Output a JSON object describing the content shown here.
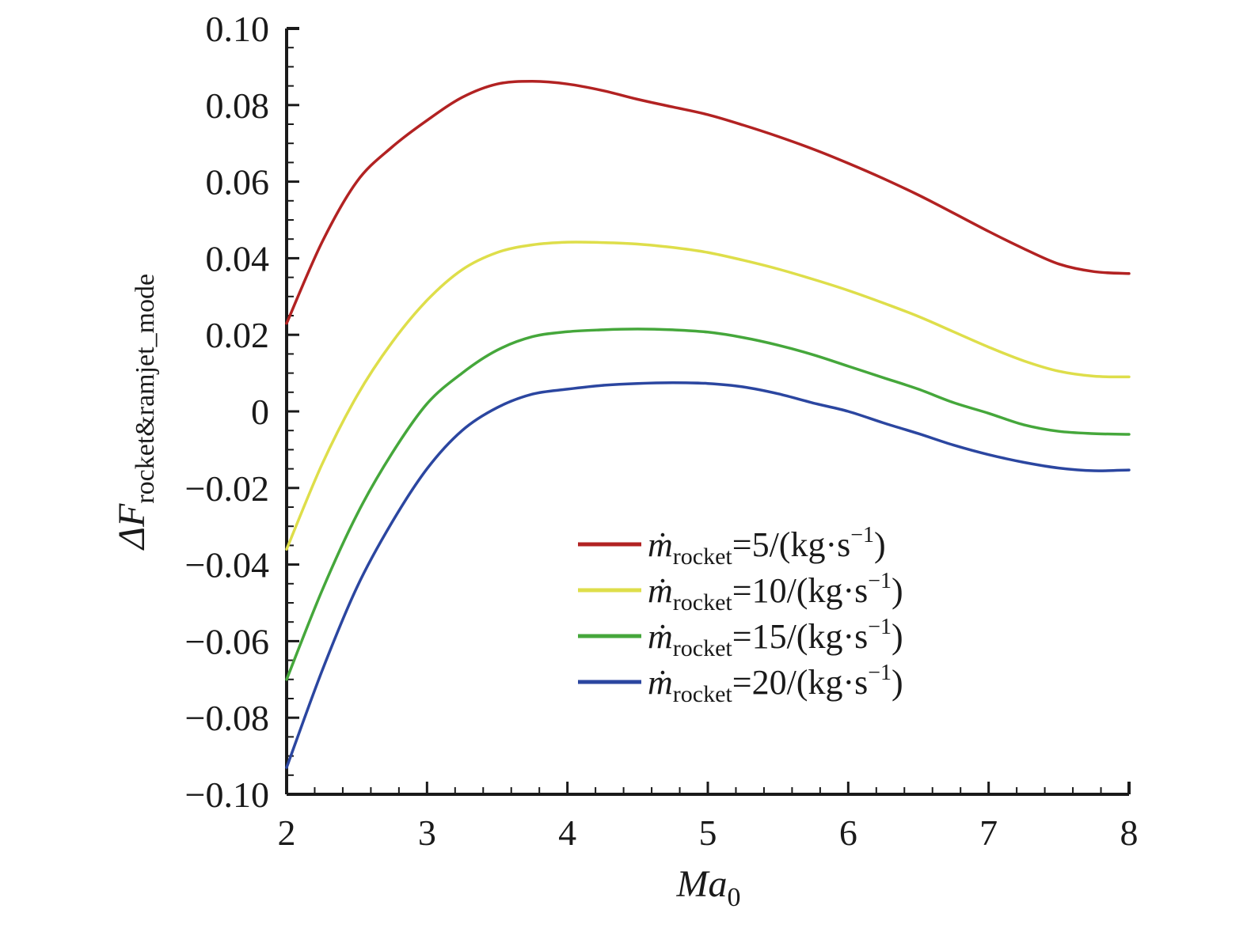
{
  "chart_data": {
    "type": "line",
    "title": "",
    "xlabel": "Ma",
    "xlabel_sub": "0",
    "ylabel": "ΔF",
    "ylabel_sub": "rocket&ramjet_mode",
    "xlim": [
      2,
      8
    ],
    "ylim": [
      -0.1,
      0.1
    ],
    "x_ticks": [
      2,
      3,
      4,
      5,
      6,
      7,
      8
    ],
    "x_tick_labels": [
      "2",
      "3",
      "4",
      "5",
      "6",
      "7",
      "8"
    ],
    "y_ticks": [
      0.1,
      0.08,
      0.06,
      0.04,
      0.02,
      0,
      -0.02,
      -0.04,
      -0.06,
      -0.08,
      -0.1
    ],
    "y_tick_labels": [
      "0.10",
      "0.08",
      "0.06",
      "0.04",
      "0.02",
      "0",
      "−0.02",
      "−0.04",
      "−0.06",
      "−0.08",
      "−0.10"
    ],
    "grid": false,
    "legend_position": "bottom-right",
    "x": [
      2.0,
      2.25,
      2.5,
      2.75,
      3.0,
      3.25,
      3.5,
      3.75,
      4.0,
      4.25,
      4.5,
      4.75,
      5.0,
      5.25,
      5.5,
      5.75,
      6.0,
      6.25,
      6.5,
      6.75,
      7.0,
      7.25,
      7.5,
      7.75,
      8.0
    ],
    "series": [
      {
        "name": "ṁ",
        "name_sub": "rocket",
        "name_rest": "=5/(kg·s",
        "name_sup": "−1",
        "name_end": ")",
        "color": "#b22222",
        "values": [
          0.023,
          0.044,
          0.06,
          0.069,
          0.076,
          0.082,
          0.0855,
          0.0862,
          0.0855,
          0.0838,
          0.0815,
          0.0795,
          0.0775,
          0.0748,
          0.0718,
          0.0685,
          0.0648,
          0.0608,
          0.0565,
          0.0518,
          0.047,
          0.0425,
          0.0385,
          0.0365,
          0.036
        ]
      },
      {
        "name": "ṁ",
        "name_sub": "rocket",
        "name_rest": "=10/(kg·s",
        "name_sup": "−1",
        "name_end": ")",
        "color": "#dede4a",
        "values": [
          -0.036,
          -0.014,
          0.004,
          0.018,
          0.029,
          0.037,
          0.0415,
          0.0435,
          0.0442,
          0.0441,
          0.0437,
          0.0428,
          0.0415,
          0.0395,
          0.0372,
          0.0345,
          0.0316,
          0.0283,
          0.0248,
          0.0208,
          0.0168,
          0.0132,
          0.0105,
          0.0092,
          0.009
        ]
      },
      {
        "name": "ṁ",
        "name_sub": "rocket",
        "name_rest": "=15/(kg·s",
        "name_sup": "−1",
        "name_end": ")",
        "color": "#45a73b",
        "values": [
          -0.07,
          -0.047,
          -0.027,
          -0.011,
          0.002,
          0.01,
          0.016,
          0.0195,
          0.0208,
          0.0213,
          0.0215,
          0.0213,
          0.0207,
          0.0193,
          0.0173,
          0.0148,
          0.0118,
          0.0088,
          0.0058,
          0.0023,
          -0.0005,
          -0.0035,
          -0.0052,
          -0.0058,
          -0.006
        ]
      },
      {
        "name": "ṁ",
        "name_sub": "rocket",
        "name_rest": "=20/(kg·s",
        "name_sup": "−1",
        "name_end": ")",
        "color": "#2b46a0",
        "values": [
          -0.093,
          -0.068,
          -0.046,
          -0.029,
          -0.015,
          -0.005,
          0.001,
          0.0045,
          0.0058,
          0.0068,
          0.0073,
          0.0075,
          0.0073,
          0.0064,
          0.0046,
          0.0022,
          0.0,
          -0.003,
          -0.0058,
          -0.0088,
          -0.0113,
          -0.0133,
          -0.0148,
          -0.0155,
          -0.0153
        ]
      }
    ]
  }
}
